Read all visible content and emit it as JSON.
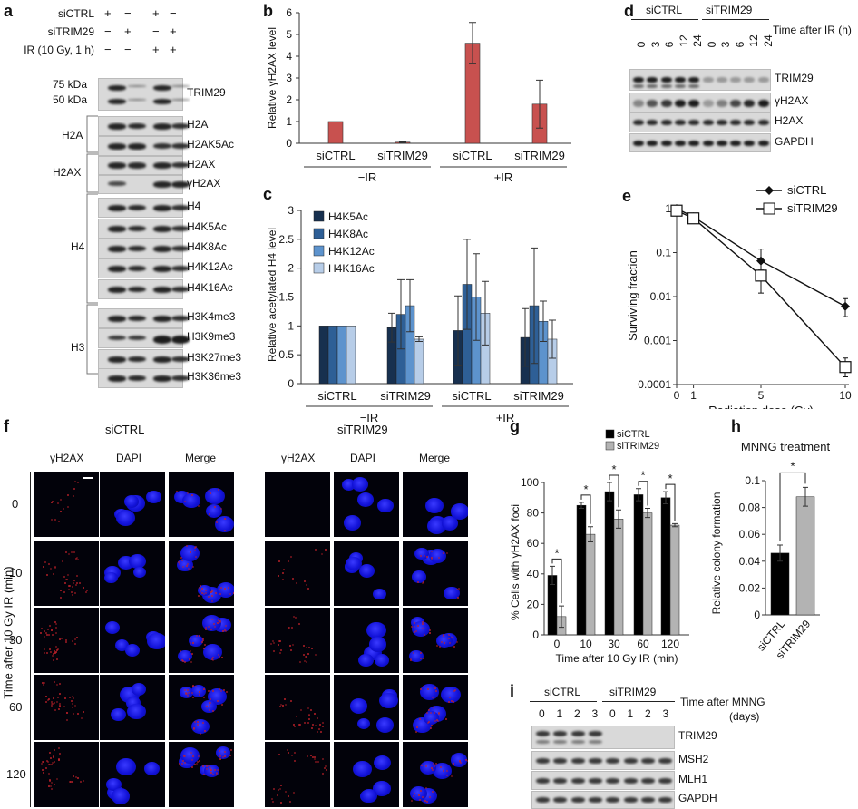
{
  "panels": {
    "a": "a",
    "b": "b",
    "c": "c",
    "d": "d",
    "e": "e",
    "f": "f",
    "g": "g",
    "h": "h",
    "i": "i"
  },
  "a": {
    "rows": [
      {
        "label": "siCTRL",
        "signs": [
          "+",
          "−",
          "+",
          "−"
        ]
      },
      {
        "label": "siTRIM29",
        "signs": [
          "−",
          "+",
          "−",
          "+"
        ]
      },
      {
        "label": "IR (10 Gy, 1 h)",
        "signs": [
          "−",
          "−",
          "+",
          "+"
        ]
      }
    ],
    "markers": [
      "75 kDa",
      "50 kDa"
    ],
    "groups": [
      "H2A",
      "H2AX",
      "H4",
      "H3"
    ],
    "blots": [
      "TRIM29",
      "H2A",
      "H2AK5Ac",
      "H2AX",
      "γH2AX",
      "H4",
      "H4K5Ac",
      "H4K8Ac",
      "H4K12Ac",
      "H4K16Ac",
      "H3K4me3",
      "H3K9me3",
      "H3K27me3",
      "H3K36me3"
    ]
  },
  "b": {
    "chart_data": {
      "type": "bar",
      "ylabel": "Relative γH2AX level",
      "ylim": [
        0,
        6
      ],
      "yticks": [
        "0",
        "1",
        "2",
        "3",
        "4",
        "5",
        "6"
      ],
      "categories": [
        "siCTRL",
        "siTRIM29",
        "siCTRL",
        "siTRIM29"
      ],
      "groups": [
        "−IR",
        "+IR"
      ],
      "values": [
        1.0,
        0.05,
        4.6,
        1.8
      ],
      "errors": [
        0,
        0.03,
        0.95,
        1.1
      ],
      "color": "#c8514f"
    }
  },
  "c": {
    "chart_data": {
      "type": "bar",
      "ylabel": "Relative acetylated H4 level",
      "ylim": [
        0,
        3
      ],
      "yticks": [
        "0",
        "0.5",
        "1",
        "1.5",
        "2",
        "2.5",
        "3"
      ],
      "categories": [
        "siCTRL",
        "siTRIM29",
        "siCTRL",
        "siTRIM29"
      ],
      "groups": [
        "−IR",
        "+IR"
      ],
      "series": [
        {
          "name": "H4K5Ac",
          "color": "#17304f",
          "values": [
            1.0,
            0.97,
            0.92,
            0.8
          ],
          "errors": [
            0,
            0.25,
            0.6,
            0.5
          ]
        },
        {
          "name": "H4K8Ac",
          "color": "#2e5f96",
          "values": [
            1.0,
            1.2,
            1.72,
            1.35
          ],
          "errors": [
            0,
            0.6,
            0.78,
            1.0
          ]
        },
        {
          "name": "H4K12Ac",
          "color": "#5d93cd",
          "values": [
            1.0,
            1.35,
            1.5,
            1.08
          ],
          "errors": [
            0,
            0.45,
            0.75,
            0.35
          ]
        },
        {
          "name": "H4K16Ac",
          "color": "#b7cde8",
          "values": [
            1.0,
            0.77,
            1.22,
            0.77
          ],
          "errors": [
            0,
            0.04,
            0.55,
            0.33
          ]
        }
      ]
    }
  },
  "d": {
    "groups": [
      "siCTRL",
      "siTRIM29"
    ],
    "time_label": "Time after IR (h)",
    "times": [
      "0",
      "3",
      "6",
      "12",
      "24",
      "0",
      "3",
      "6",
      "12",
      "24"
    ],
    "blots": [
      "TRIM29",
      "γH2AX",
      "H2AX",
      "GAPDH"
    ]
  },
  "e": {
    "chart_data": {
      "type": "line",
      "xlabel": "Radiation dose (Gy)",
      "ylabel": "Surviving fraction",
      "yscale": "log",
      "yticks": [
        "1",
        "0.1",
        "0.01",
        "0.001",
        "0.0001"
      ],
      "xticks": [
        "0",
        "1",
        "5",
        "10"
      ],
      "series": [
        {
          "name": "siCTRL",
          "marker": "diamond",
          "x": [
            0,
            1,
            5,
            10
          ],
          "y": [
            1,
            0.65,
            0.065,
            0.006
          ],
          "errors_hi": [
            1.1,
            0.75,
            0.12,
            0.009
          ],
          "errors_lo": [
            0.9,
            0.55,
            0.04,
            0.0035
          ]
        },
        {
          "name": "siTRIM29",
          "marker": "square",
          "x": [
            0,
            1,
            5,
            10
          ],
          "y": [
            0.9,
            0.6,
            0.03,
            0.00025
          ],
          "errors_hi": [
            1.0,
            0.7,
            0.07,
            0.0004
          ],
          "errors_lo": [
            0.8,
            0.5,
            0.012,
            0.00015
          ]
        }
      ]
    }
  },
  "f": {
    "groups": [
      "siCTRL",
      "siTRIM29"
    ],
    "channels": [
      "γH2AX",
      "DAPI",
      "Merge",
      "γH2AX",
      "DAPI",
      "Merge"
    ],
    "ylabel": "Time after 10 Gy IR (min)",
    "times": [
      "0",
      "10",
      "30",
      "60",
      "120"
    ]
  },
  "g": {
    "chart_data": {
      "type": "bar",
      "ylabel": "% Cells with γH2AX foci",
      "xlabel": "Time after 10 Gy IR (min)",
      "ylim": [
        0,
        100
      ],
      "yticks": [
        "0",
        "20",
        "40",
        "60",
        "80",
        "100"
      ],
      "categories": [
        "0",
        "10",
        "30",
        "60",
        "120"
      ],
      "series": [
        {
          "name": "siCTRL",
          "color": "#000000",
          "values": [
            39,
            85,
            94,
            92,
            90
          ],
          "errors": [
            6,
            2,
            6,
            4,
            4
          ]
        },
        {
          "name": "siTRIM29",
          "color": "#b3b3b3",
          "values": [
            12,
            66,
            76,
            80,
            72
          ],
          "errors": [
            7,
            5,
            6,
            3,
            1
          ]
        }
      ],
      "significance": [
        "*",
        "*",
        "*",
        "*",
        "*"
      ]
    }
  },
  "h": {
    "chart_data": {
      "type": "bar",
      "title": "MNNG treatment",
      "ylabel": "Relative colony formation",
      "ylim": [
        0,
        0.1
      ],
      "yticks": [
        "0",
        "0.02",
        "0.04",
        "0.06",
        "0.08",
        "0.1"
      ],
      "categories": [
        "siCTRL",
        "siTRIM29"
      ],
      "values": [
        0.046,
        0.088
      ],
      "errors": [
        0.006,
        0.007
      ],
      "colors": [
        "#000000",
        "#b3b3b3"
      ],
      "significance": "*"
    }
  },
  "i": {
    "groups": [
      "siCTRL",
      "siTRIM29"
    ],
    "time_label": "Time after MNNG",
    "time_unit": "(days)",
    "times": [
      "0",
      "1",
      "2",
      "3",
      "0",
      "1",
      "2",
      "3"
    ],
    "blots": [
      "TRIM29",
      "MSH2",
      "MLH1",
      "GAPDH"
    ]
  }
}
